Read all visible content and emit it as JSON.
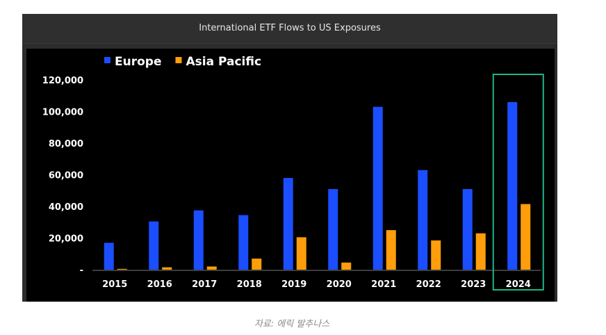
{
  "chart_data": {
    "type": "bar",
    "title": "International ETF Flows to US Exposures",
    "categories": [
      "2015",
      "2016",
      "2017",
      "2018",
      "2019",
      "2020",
      "2021",
      "2022",
      "2023",
      "2024"
    ],
    "series": [
      {
        "name": "Europe",
        "color": "#1a4eff",
        "values": [
          17000,
          30500,
          37500,
          34500,
          58000,
          51000,
          103000,
          63000,
          51000,
          106000
        ]
      },
      {
        "name": "Asia Pacific",
        "color": "#ff9d0a",
        "values": [
          500,
          1500,
          2000,
          7000,
          20500,
          4500,
          25000,
          18500,
          23000,
          41500
        ]
      }
    ],
    "ylim": [
      0,
      120000
    ],
    "yticks": [
      "-",
      "20,000",
      "40,000",
      "60,000",
      "80,000",
      "100,000",
      "120,000"
    ],
    "grid": false,
    "legend_position": "top-left",
    "highlight": {
      "category": "2024",
      "color": "#1fb58a"
    }
  },
  "caption": "자료: 에릭 발추나스"
}
